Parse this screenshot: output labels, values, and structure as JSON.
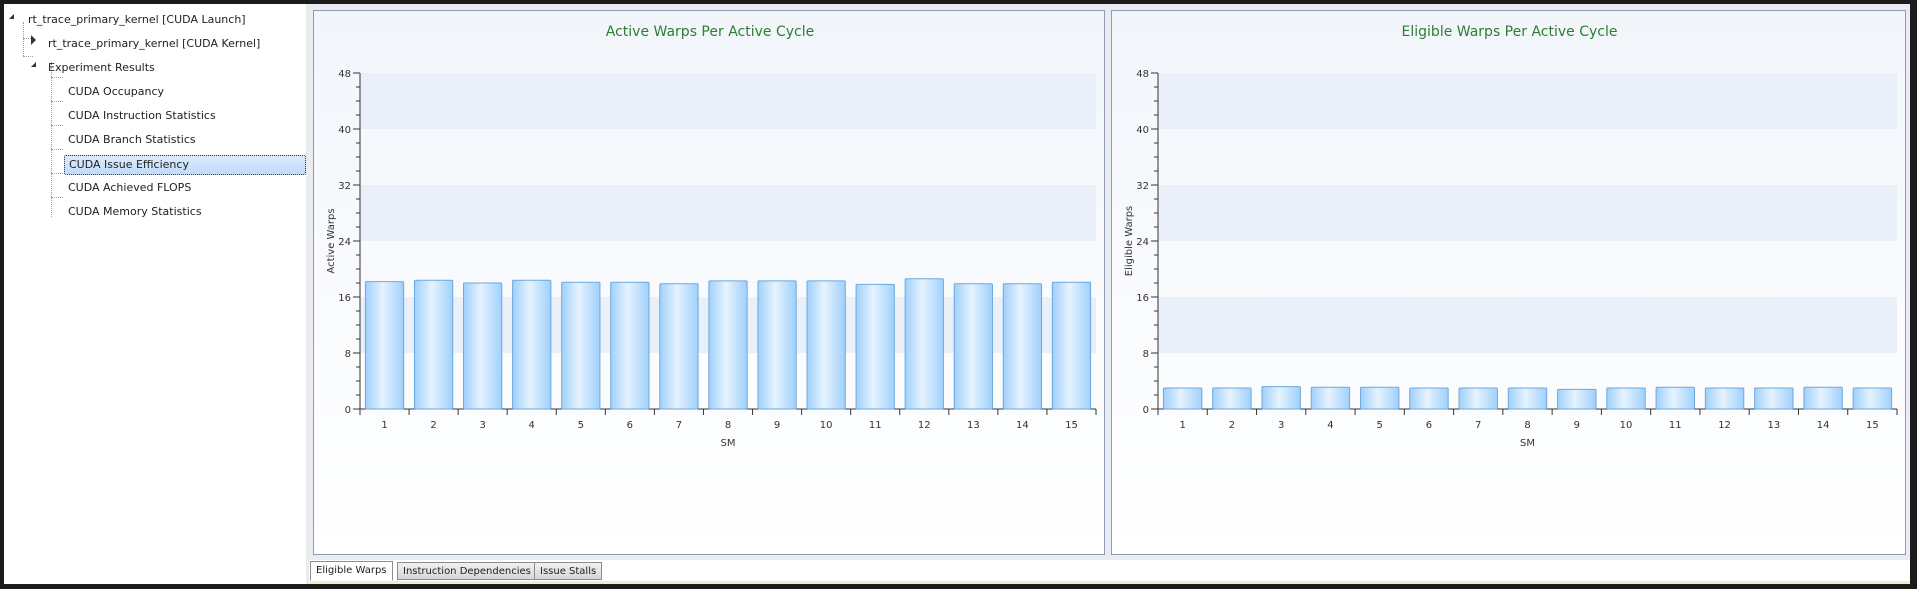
{
  "tree": {
    "root": {
      "label": "rt_trace_primary_kernel [CUDA Launch]"
    },
    "kernel": {
      "label": "rt_trace_primary_kernel [CUDA Kernel]"
    },
    "experiments": {
      "label": "Experiment Results",
      "items": [
        {
          "label": "CUDA Occupancy"
        },
        {
          "label": "CUDA Instruction Statistics"
        },
        {
          "label": "CUDA Branch Statistics"
        },
        {
          "label": "CUDA Issue Efficiency"
        },
        {
          "label": "CUDA Achieved FLOPS"
        },
        {
          "label": "CUDA Memory Statistics"
        }
      ],
      "selected_index": 3
    }
  },
  "tabs": [
    {
      "label": "Eligible Warps"
    },
    {
      "label": "Instruction Dependencies"
    },
    {
      "label": "Issue Stalls"
    }
  ],
  "active_tab_index": 0,
  "colors": {
    "title": "#2e7d32",
    "bar_light": "#e6f3ff",
    "bar_dark": "#9fd0fb",
    "bar_stroke": "#6fa8dc",
    "band": "#e9f0f9"
  },
  "chart_data": [
    {
      "type": "bar",
      "title": "Active Warps Per Active Cycle",
      "xlabel": "SM",
      "ylabel": "Active Warps",
      "ylim": [
        0,
        48
      ],
      "yticks": [
        0,
        8,
        16,
        24,
        32,
        40,
        48
      ],
      "categories": [
        "1",
        "2",
        "3",
        "4",
        "5",
        "6",
        "7",
        "8",
        "9",
        "10",
        "11",
        "12",
        "13",
        "14",
        "15"
      ],
      "values": [
        18.2,
        18.4,
        18.0,
        18.4,
        18.1,
        18.1,
        17.9,
        18.3,
        18.3,
        18.3,
        17.8,
        18.6,
        17.9,
        17.9,
        18.1
      ]
    },
    {
      "type": "bar",
      "title": "Eligible Warps Per Active Cycle",
      "xlabel": "SM",
      "ylabel": "Eligible Warps",
      "ylim": [
        0,
        48
      ],
      "yticks": [
        0,
        8,
        16,
        24,
        32,
        40,
        48
      ],
      "categories": [
        "1",
        "2",
        "3",
        "4",
        "5",
        "6",
        "7",
        "8",
        "9",
        "10",
        "11",
        "12",
        "13",
        "14",
        "15"
      ],
      "values": [
        3.0,
        3.0,
        3.2,
        3.1,
        3.1,
        3.0,
        3.0,
        3.0,
        2.8,
        3.0,
        3.1,
        3.0,
        3.0,
        3.1,
        3.0
      ]
    }
  ]
}
